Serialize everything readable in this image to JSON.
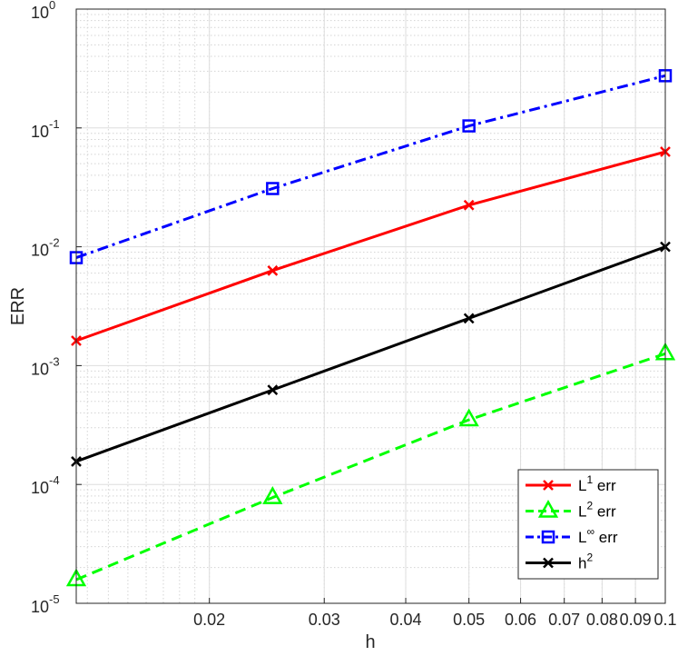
{
  "chart_data": {
    "type": "line",
    "scale": {
      "x": "log",
      "y": "log"
    },
    "xlabel": "h",
    "ylabel": "ERR",
    "xlim": [
      0.0125,
      0.1
    ],
    "ylim": [
      1e-05,
      1
    ],
    "grid": true,
    "minor_grid": true,
    "x_ticks": [
      {
        "value": 0.02,
        "label": "0.02"
      },
      {
        "value": 0.03,
        "label": "0.03"
      },
      {
        "value": 0.04,
        "label": "0.04"
      },
      {
        "value": 0.05,
        "label": "0.05"
      },
      {
        "value": 0.06,
        "label": "0.06"
      },
      {
        "value": 0.07,
        "label": "0.07"
      },
      {
        "value": 0.08,
        "label": "0.08"
      },
      {
        "value": 0.09,
        "label": "0.09"
      },
      {
        "value": 0.1,
        "label": "0.1"
      }
    ],
    "y_ticks": [
      {
        "value": 1e-05,
        "base": "10",
        "exp": "-5"
      },
      {
        "value": 0.0001,
        "base": "10",
        "exp": "-4"
      },
      {
        "value": 0.001,
        "base": "10",
        "exp": "-3"
      },
      {
        "value": 0.01,
        "base": "10",
        "exp": "-2"
      },
      {
        "value": 0.1,
        "base": "10",
        "exp": "-1"
      },
      {
        "value": 1,
        "base": "10",
        "exp": "0"
      }
    ],
    "legend_position": "bottom-right",
    "x": [
      0.0125,
      0.025,
      0.05,
      0.1
    ],
    "series": [
      {
        "legend_main": "L",
        "legend_sup": "1",
        "legend_tail": " err",
        "values": [
          0.00162,
          0.0063,
          0.0224,
          0.063
        ],
        "color": "#ff0000",
        "dash": "solid",
        "marker": "x"
      },
      {
        "legend_main": "L",
        "legend_sup": "2",
        "legend_tail": " err",
        "values": [
          1.58e-05,
          7.76e-05,
          0.00035,
          0.00126
        ],
        "color": "#00ff00",
        "dash": "dashed",
        "marker": "triangle"
      },
      {
        "legend_main": "L",
        "legend_sup": "∞",
        "legend_tail": " err",
        "values": [
          0.0081,
          0.0309,
          0.104,
          0.275
        ],
        "color": "#0000ff",
        "dash": "dashdot",
        "marker": "square"
      },
      {
        "legend_main": "h",
        "legend_sup": "2",
        "legend_tail": "",
        "values": [
          0.000156,
          0.000625,
          0.0025,
          0.01
        ],
        "color": "#000000",
        "dash": "solid",
        "marker": "x"
      }
    ]
  }
}
